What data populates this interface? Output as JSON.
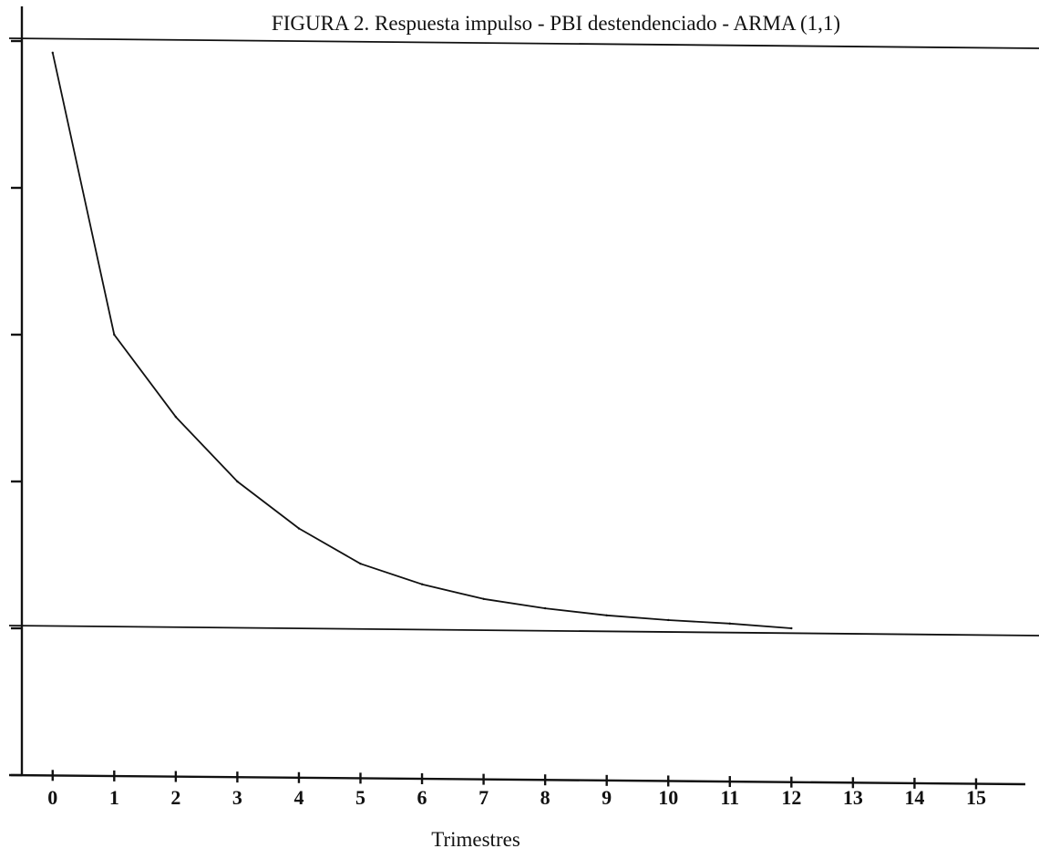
{
  "chart_data": {
    "type": "line",
    "title": "FIGURA 2. Respuesta impulso - PBI destendenciado - ARMA (1,1)",
    "xlabel": "Trimestres",
    "ylabel": "",
    "x_ticks": [
      "0",
      "1",
      "2",
      "3",
      "4",
      "5",
      "6",
      "7",
      "8",
      "9",
      "10",
      "11",
      "12",
      "13",
      "14",
      "15"
    ],
    "xlim": [
      -0.5,
      15.8
    ],
    "ylim": [
      -0.25,
      1.0
    ],
    "y_tick_values": [
      -0.25,
      0,
      0.25,
      0.5,
      0.75,
      1.0
    ],
    "y_tick_labels_shown": false,
    "reference_lines_y": [
      0,
      1.0
    ],
    "grid": false,
    "legend": "none",
    "series": [
      {
        "x": [
          0,
          1,
          2,
          3,
          4,
          5,
          6,
          7,
          8,
          9,
          10,
          11,
          12
        ],
        "values": [
          0.98,
          0.5,
          0.36,
          0.25,
          0.17,
          0.11,
          0.075,
          0.05,
          0.034,
          0.022,
          0.014,
          0.008,
          0.0
        ]
      }
    ],
    "colors": {
      "ink": "#111111",
      "background": "#ffffff"
    }
  }
}
